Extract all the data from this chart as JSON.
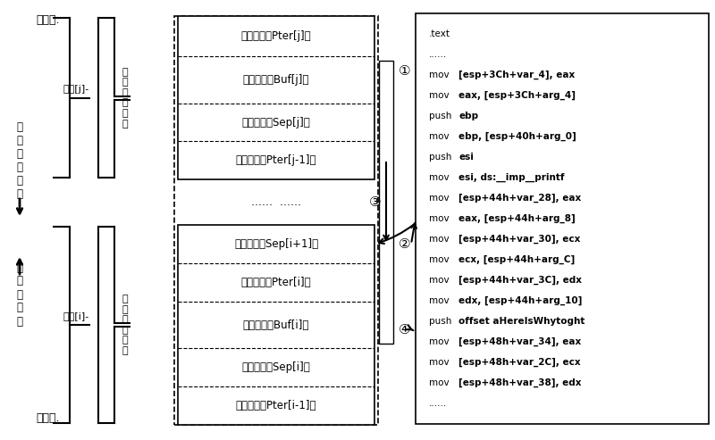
{
  "bg_color": "#ffffff",
  "left_labels": {
    "low_addr": "低地址.",
    "high_addr": "高地址.",
    "overflow_dir": "数\n据\n溢\n山\n方\n向",
    "stack_dir": "栈\n增\n长\n方\n向",
    "frame_j": "栈帧[j]-",
    "frame_i": "栈帧[i]-",
    "state_j": "状\n态\n空\n间\n子\n集",
    "state_i": "状\n态\n空\n间\n子\n集"
  },
  "rows_top": [
    "指针数据（Pter[j]）",
    "缓冲数据（Buf[j]）",
    "隔离标志（Sep[j]）",
    "指针数据（Pter[j-1]）"
  ],
  "rows_middle": "......  ......",
  "rows_bottom": [
    "隔离标志（Sep[i+1]）",
    "指针数据（Pter[i]）",
    "缓冲数据（Buf[i]）",
    "隔离标志（Sep[i]）",
    "指针数据（Pter[i-1]）"
  ],
  "circle_labels": [
    "①",
    "②",
    "③",
    "④"
  ],
  "code_lines": [
    ".text",
    "......",
    "mov    [esp+3Ch+var_4], eax",
    "mov    eax, [esp+3Ch+arg_4]",
    "push   ebp",
    "mov    ebp, [esp+40h+arg_0]",
    "push   esi",
    "mov    esi, ds:__imp__printf",
    "mov    [esp+44h+var_28], eax",
    "mov    eax, [esp+44h+arg_8]",
    "mov    [esp+44h+var_30], ecx",
    "mov    ecx, [esp+44h+arg_C]",
    "mov    [esp+44h+var_3C], edx",
    "mov    edx, [esp+44h+arg_10]",
    "push   offset aHereIsWhytoght",
    "mov    [esp+48h+var_34], eax",
    "mov    [esp+48h+var_2C], ecx",
    "mov    [esp+48h+var_38], edx",
    "......"
  ]
}
